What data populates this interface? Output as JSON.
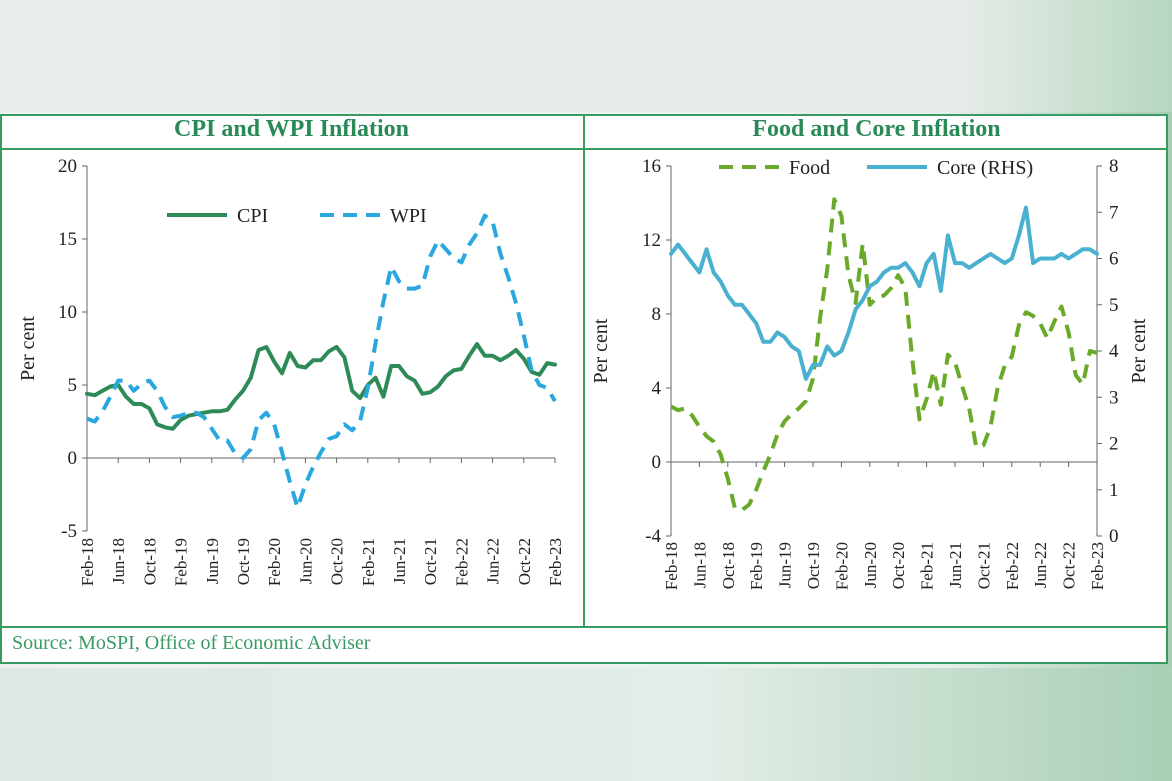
{
  "source": "Source: MoSPI, Office of Economic Adviser",
  "chart_data": [
    {
      "type": "line",
      "title": "CPI and WPI Inflation",
      "ylabel": "Per cent",
      "ylim": [
        -5,
        20
      ],
      "yticks": [
        -5,
        0,
        5,
        10,
        15,
        20
      ],
      "x": [
        "Feb-18",
        "Mar-18",
        "Apr-18",
        "May-18",
        "Jun-18",
        "Jul-18",
        "Aug-18",
        "Sep-18",
        "Oct-18",
        "Nov-18",
        "Dec-18",
        "Jan-19",
        "Feb-19",
        "Mar-19",
        "Apr-19",
        "May-19",
        "Jun-19",
        "Jul-19",
        "Aug-19",
        "Sep-19",
        "Oct-19",
        "Nov-19",
        "Dec-19",
        "Jan-20",
        "Feb-20",
        "Mar-20",
        "Apr-20",
        "May-20",
        "Jun-20",
        "Jul-20",
        "Aug-20",
        "Sep-20",
        "Oct-20",
        "Nov-20",
        "Dec-20",
        "Jan-21",
        "Feb-21",
        "Mar-21",
        "Apr-21",
        "May-21",
        "Jun-21",
        "Jul-21",
        "Aug-21",
        "Sep-21",
        "Oct-21",
        "Nov-21",
        "Dec-21",
        "Jan-22",
        "Feb-22",
        "Mar-22",
        "Apr-22",
        "May-22",
        "Jun-22",
        "Jul-22",
        "Aug-22",
        "Sep-22",
        "Oct-22",
        "Nov-22",
        "Dec-22",
        "Jan-23",
        "Feb-23"
      ],
      "xtick_labels": [
        "Feb-18",
        "Jun-18",
        "Oct-18",
        "Feb-19",
        "Jun-19",
        "Oct-19",
        "Feb-20",
        "Jun-20",
        "Oct-20",
        "Feb-21",
        "Jun-21",
        "Oct-21",
        "Feb-22",
        "Jun-22",
        "Oct-22",
        "Feb-23"
      ],
      "legend_position": "top",
      "series": [
        {
          "name": "CPI",
          "style": "solid",
          "color": "#2e8b57",
          "values": [
            4.4,
            4.3,
            4.6,
            4.9,
            5.0,
            4.2,
            3.7,
            3.7,
            3.4,
            2.3,
            2.1,
            2.0,
            2.6,
            2.9,
            3.0,
            3.1,
            3.2,
            3.2,
            3.3,
            4.0,
            4.6,
            5.5,
            7.4,
            7.6,
            6.6,
            5.8,
            7.2,
            6.3,
            6.2,
            6.7,
            6.7,
            7.3,
            7.6,
            6.9,
            4.6,
            4.1,
            5.0,
            5.5,
            4.2,
            6.3,
            6.3,
            5.6,
            5.3,
            4.4,
            4.5,
            4.9,
            5.6,
            6.0,
            6.1,
            7.0,
            7.8,
            7.0,
            7.0,
            6.7,
            7.0,
            7.4,
            6.8,
            5.9,
            5.7,
            6.5,
            6.4
          ]
        },
        {
          "name": "WPI",
          "style": "dashed",
          "color": "#29a8e0",
          "values": [
            2.7,
            2.5,
            3.2,
            4.2,
            5.3,
            5.3,
            4.6,
            5.1,
            5.3,
            4.6,
            3.5,
            2.8,
            2.9,
            3.1,
            3.1,
            2.8,
            2.0,
            1.2,
            1.2,
            0.3,
            0.0,
            0.6,
            2.6,
            3.1,
            2.3,
            0.4,
            -1.6,
            -3.4,
            -1.8,
            -0.6,
            0.4,
            1.3,
            1.5,
            2.3,
            1.9,
            2.5,
            4.8,
            7.9,
            10.7,
            13.1,
            12.1,
            11.6,
            11.6,
            11.8,
            13.8,
            14.9,
            14.3,
            13.7,
            13.4,
            14.6,
            15.4,
            16.6,
            16.2,
            14.0,
            12.4,
            10.6,
            8.4,
            6.0,
            5.0,
            4.8,
            3.9
          ]
        }
      ]
    },
    {
      "type": "line",
      "title": "Food and Core Inflation",
      "ylabel": "Per cent",
      "ylabel_right": "Per cent",
      "ylim": [
        -4,
        16
      ],
      "yticks": [
        -4,
        0,
        4,
        8,
        12,
        16
      ],
      "ylim_right": [
        0,
        8
      ],
      "yticks_right": [
        0,
        1,
        2,
        3,
        4,
        5,
        6,
        7,
        8
      ],
      "x": [
        "Feb-18",
        "Mar-18",
        "Apr-18",
        "May-18",
        "Jun-18",
        "Jul-18",
        "Aug-18",
        "Sep-18",
        "Oct-18",
        "Nov-18",
        "Dec-18",
        "Jan-19",
        "Feb-19",
        "Mar-19",
        "Apr-19",
        "May-19",
        "Jun-19",
        "Jul-19",
        "Aug-19",
        "Sep-19",
        "Oct-19",
        "Nov-19",
        "Dec-19",
        "Jan-20",
        "Feb-20",
        "Mar-20",
        "Apr-20",
        "May-20",
        "Jun-20",
        "Jul-20",
        "Aug-20",
        "Sep-20",
        "Oct-20",
        "Nov-20",
        "Dec-20",
        "Jan-21",
        "Feb-21",
        "Mar-21",
        "Apr-21",
        "May-21",
        "Jun-21",
        "Jul-21",
        "Aug-21",
        "Sep-21",
        "Oct-21",
        "Nov-21",
        "Dec-21",
        "Jan-22",
        "Feb-22",
        "Mar-22",
        "Apr-22",
        "May-22",
        "Jun-22",
        "Jul-22",
        "Aug-22",
        "Sep-22",
        "Oct-22",
        "Nov-22",
        "Dec-22",
        "Jan-23",
        "Feb-23"
      ],
      "xtick_labels": [
        "Feb-18",
        "Jun-18",
        "Oct-18",
        "Feb-19",
        "Jun-19",
        "Oct-19",
        "Feb-20",
        "Jun-20",
        "Oct-20",
        "Feb-21",
        "Jun-21",
        "Oct-21",
        "Feb-22",
        "Jun-22",
        "Oct-22",
        "Feb-23"
      ],
      "legend_position": "top",
      "series": [
        {
          "name": "Food",
          "style": "dashed",
          "color": "#6aaa2a",
          "axis": "left",
          "values": [
            3.0,
            2.8,
            2.9,
            2.5,
            1.9,
            1.4,
            1.1,
            0.4,
            -0.9,
            -2.5,
            -2.6,
            -2.3,
            -1.5,
            -0.5,
            0.4,
            1.5,
            2.2,
            2.6,
            2.9,
            3.3,
            4.5,
            7.8,
            10.4,
            14.2,
            13.3,
            10.1,
            8.6,
            11.8,
            8.5,
            8.9,
            9.0,
            9.4,
            10.1,
            9.4,
            5.5,
            2.3,
            3.4,
            4.9,
            3.1,
            5.8,
            5.4,
            4.1,
            2.9,
            0.8,
            0.9,
            1.9,
            4.0,
            5.2,
            5.7,
            7.4,
            8.1,
            7.9,
            7.5,
            6.7,
            7.6,
            8.4,
            7.0,
            4.7,
            4.2,
            6.0,
            5.9
          ]
        },
        {
          "name": "Core (RHS)",
          "style": "solid",
          "color": "#4ab0d0",
          "axis": "right",
          "values": [
            6.1,
            6.3,
            6.1,
            5.9,
            5.7,
            6.2,
            5.7,
            5.5,
            5.2,
            5.0,
            5.0,
            4.8,
            4.6,
            4.2,
            4.2,
            4.4,
            4.3,
            4.1,
            4.0,
            3.4,
            3.7,
            3.7,
            4.1,
            3.9,
            4.0,
            4.4,
            4.9,
            5.1,
            5.4,
            5.5,
            5.7,
            5.8,
            5.8,
            5.9,
            5.7,
            5.4,
            5.9,
            6.1,
            5.3,
            6.5,
            5.9,
            5.9,
            5.8,
            5.9,
            6.0,
            6.1,
            6.0,
            5.9,
            6.0,
            6.5,
            7.1,
            5.9,
            6.0,
            6.0,
            6.0,
            6.1,
            6.0,
            6.1,
            6.2,
            6.2,
            6.1
          ]
        }
      ]
    }
  ]
}
